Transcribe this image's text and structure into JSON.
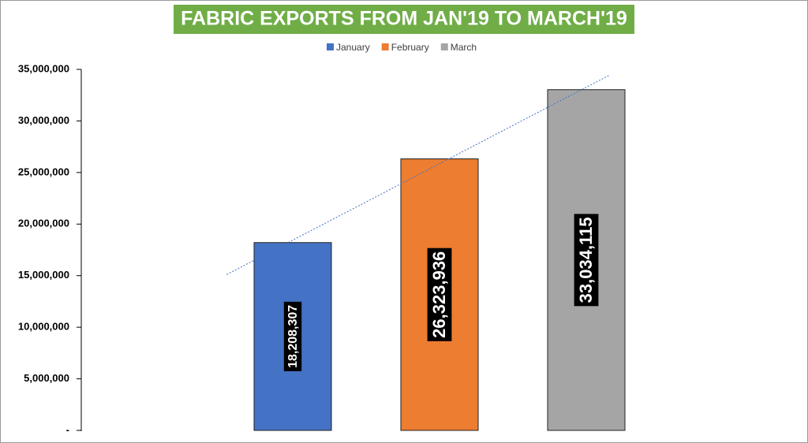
{
  "chart_data": {
    "type": "bar",
    "title": "FABRIC EXPORTS FROM JAN'19 TO MARCH'19",
    "categories": [
      null
    ],
    "series": [
      {
        "name": "January",
        "color": "#4472c4",
        "values": [
          18208307
        ],
        "value_labels": [
          "18,208,307"
        ]
      },
      {
        "name": "February",
        "color": "#ed7d31",
        "values": [
          26323936
        ],
        "value_labels": [
          "26,323,936"
        ]
      },
      {
        "name": "March",
        "color": "#a5a5a5",
        "values": [
          33034115
        ],
        "value_labels": [
          "33,034,115"
        ]
      }
    ],
    "ylim": [
      0,
      35000000
    ],
    "yticks": [
      {
        "value": 0,
        "label": "-"
      },
      {
        "value": 5000000,
        "label": "5,000,000"
      },
      {
        "value": 10000000,
        "label": "10,000,000"
      },
      {
        "value": 15000000,
        "label": "15,000,000"
      },
      {
        "value": 20000000,
        "label": "20,000,000"
      },
      {
        "value": 25000000,
        "label": "25,000,000"
      },
      {
        "value": 30000000,
        "label": "30,000,000"
      },
      {
        "value": 35000000,
        "label": "35,000,000"
      }
    ],
    "legend": "top",
    "trendline": true
  }
}
